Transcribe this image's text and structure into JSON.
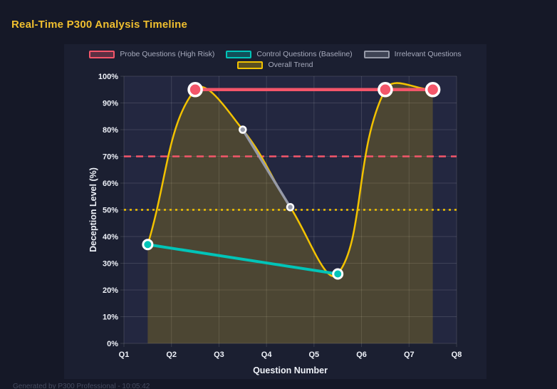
{
  "page": {
    "title": "Real-Time P300 Analysis Timeline",
    "footer": "Generated by P300 Professional - 10:05:42"
  },
  "colors": {
    "background": "#151827",
    "panel": "#1b1f31",
    "plot_bg": "#232740",
    "grid": "rgba(255,255,255,0.13)",
    "title": "#f0bf2f",
    "axis_text": "#eef1f8",
    "legend_text": "#a7abbd",
    "footer_text": "#454b60",
    "marker_ring": "#ffffff"
  },
  "chart_data": {
    "type": "line",
    "title": "Real-Time P300 Analysis Timeline",
    "xlabel": "Question Number",
    "ylabel": "Deception Level (%)",
    "xlim": [
      1,
      8
    ],
    "ylim": [
      0,
      100
    ],
    "grid": true,
    "legend_position": "top",
    "x_ticks": [
      "Q1",
      "Q2",
      "Q3",
      "Q4",
      "Q5",
      "Q6",
      "Q7",
      "Q8"
    ],
    "x_tick_values": [
      1,
      2,
      3,
      4,
      5,
      6,
      7,
      8
    ],
    "y_ticks": [
      "0%",
      "10%",
      "20%",
      "30%",
      "40%",
      "50%",
      "60%",
      "70%",
      "80%",
      "90%",
      "100%"
    ],
    "y_tick_values": [
      0,
      10,
      20,
      30,
      40,
      50,
      60,
      70,
      80,
      90,
      100
    ],
    "series": [
      {
        "name": "Probe Questions (High Risk)",
        "color": "#f4566a",
        "line": "straight",
        "line_width": 4.5,
        "marker_radius": 9,
        "marker_stroke": 3.5,
        "points": [
          [
            2.5,
            95
          ],
          [
            6.5,
            95
          ],
          [
            7.5,
            95
          ]
        ]
      },
      {
        "name": "Control Questions (Baseline)",
        "color": "#00c4b8",
        "line": "straight",
        "line_width": 4,
        "marker_radius": 6.5,
        "marker_stroke": 3,
        "points": [
          [
            1.5,
            37
          ],
          [
            5.5,
            26
          ]
        ]
      },
      {
        "name": "Irrelevant Questions",
        "color": "#969aa8",
        "line": "straight",
        "line_width": 3.5,
        "marker_radius": 4.5,
        "marker_stroke": 2.5,
        "points": [
          [
            3.5,
            80
          ],
          [
            4.5,
            51
          ]
        ]
      },
      {
        "name": "Overall Trend",
        "color": "#f2c200",
        "line": "smooth",
        "line_width": 2.5,
        "marker_radius": 0,
        "marker_stroke": 0,
        "fill": true,
        "fill_color": "rgba(242,194,0,0.20)",
        "points": [
          [
            1.5,
            37
          ],
          [
            2.5,
            95
          ],
          [
            3.5,
            80
          ],
          [
            4.5,
            51
          ],
          [
            5.5,
            26
          ],
          [
            6.5,
            95
          ],
          [
            7.5,
            95
          ]
        ]
      }
    ],
    "thresholds": [
      {
        "value": 70,
        "color": "#f4566a",
        "style": "dashed"
      },
      {
        "value": 50,
        "color": "#f2c200",
        "style": "dotted"
      }
    ]
  }
}
